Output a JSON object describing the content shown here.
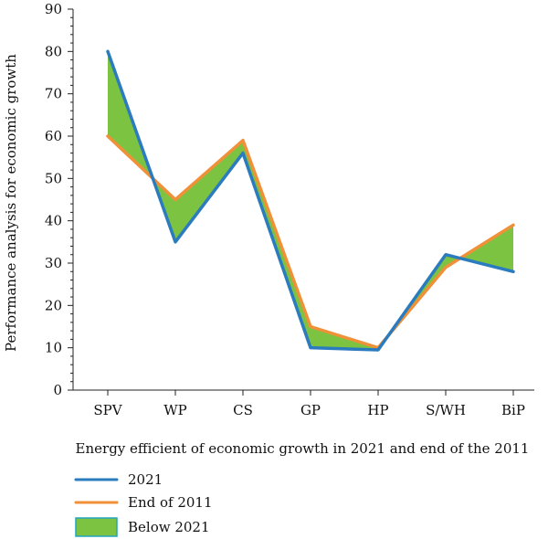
{
  "chart_data": {
    "type": "line",
    "categories": [
      "SPV",
      "WP",
      "CS",
      "GP",
      "HP",
      "S/WH",
      "BiP"
    ],
    "series": [
      {
        "name": "2021",
        "values": [
          80,
          35,
          56,
          10,
          9.5,
          32,
          28
        ],
        "color": "#2b7bbf"
      },
      {
        "name": "End of 2011",
        "values": [
          60,
          45,
          59,
          15,
          10,
          29,
          39
        ],
        "color": "#f0913a"
      }
    ],
    "fill": {
      "name": "Below 2021",
      "color": "#7cc341",
      "border": "#24a3c0"
    },
    "xlabel": "Energy efficient of economic growth in 2021 and end of the 2011",
    "ylabel": "Performance analysis for economic growth",
    "ylim": [
      0,
      90
    ],
    "yticks": [
      0,
      10,
      20,
      30,
      40,
      50,
      60,
      70,
      80,
      90
    ],
    "grid": false,
    "legend_position": "bottom-left"
  }
}
